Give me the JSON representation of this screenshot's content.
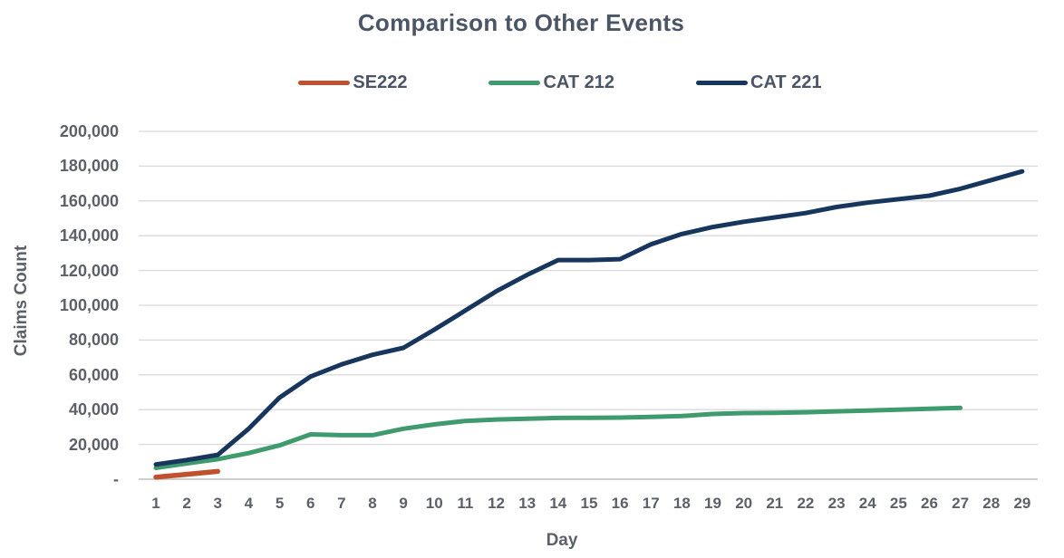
{
  "chart_data": {
    "type": "line",
    "title": "Comparison to Other Events",
    "xlabel": "Day",
    "ylabel": "Claims Count",
    "x_ticks": [
      1,
      2,
      3,
      4,
      5,
      6,
      7,
      8,
      9,
      10,
      11,
      12,
      13,
      14,
      15,
      16,
      17,
      18,
      19,
      20,
      21,
      22,
      23,
      24,
      25,
      26,
      27,
      28,
      29
    ],
    "xlim": [
      1,
      29
    ],
    "ylim": [
      0,
      200000
    ],
    "ytick_step": 20000,
    "y_tick_labels": [
      "-",
      "20,000",
      "40,000",
      "60,000",
      "80,000",
      "100,000",
      "120,000",
      "140,000",
      "160,000",
      "180,000",
      "200,000"
    ],
    "grid": true,
    "legend_position": "top",
    "series": [
      {
        "name": "SE222",
        "color": "#C0512F",
        "x_start": 1,
        "values": [
          1200,
          2800,
          4500
        ]
      },
      {
        "name": "CAT 212",
        "color": "#3F9B6E",
        "x_start": 1,
        "values": [
          6500,
          9000,
          11500,
          15000,
          19500,
          25800,
          25300,
          25300,
          29000,
          31500,
          33500,
          34300,
          34800,
          35200,
          35300,
          35400,
          35800,
          36300,
          37500,
          38000,
          38200,
          38500,
          39000,
          39500,
          40000,
          40500,
          41000
        ]
      },
      {
        "name": "CAT 221",
        "color": "#17365D",
        "x_start": 1,
        "values": [
          8500,
          11000,
          14000,
          29000,
          47000,
          59000,
          66000,
          71500,
          75500,
          86000,
          97000,
          108000,
          117500,
          126000,
          126000,
          126500,
          135000,
          141000,
          145000,
          148000,
          150500,
          153000,
          156500,
          159000,
          161000,
          163000,
          167000,
          172000,
          177000
        ]
      }
    ]
  },
  "colors": {
    "title_text": "#4A5568",
    "axis_text": "#5C6068",
    "grid": "#D9D9D9",
    "axis_line": "#BFBFBF",
    "background": "#FFFFFF"
  }
}
